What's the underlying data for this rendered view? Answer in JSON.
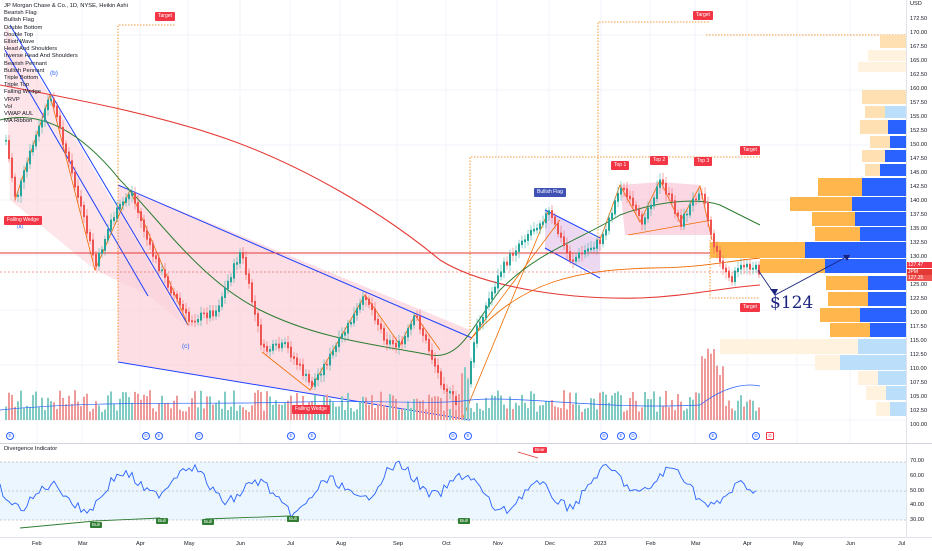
{
  "chart": {
    "symbol_line": "JP Morgan Chase & Co., 1D, NYSE, Heikin Ashi",
    "indicators": [
      "Bearish Flag",
      "Bullish Flag",
      "Double Bottom",
      "Double Top",
      "Elliott Wave",
      "Head And Shoulders",
      "Inverse Head And Shoulders",
      "Bearish Pennant",
      "Bullish Pennant",
      "Triple Bottom",
      "Triple Top",
      "Falling Wedge",
      "VRVP",
      "Vol",
      "VWAP AUL",
      "MA Ribbon"
    ],
    "currency": "USD",
    "price_labels": [
      "172.50",
      "170.00",
      "167.50",
      "165.00",
      "162.50",
      "160.00",
      "157.50",
      "155.00",
      "152.50",
      "150.00",
      "147.50",
      "145.00",
      "142.50",
      "140.00",
      "137.50",
      "135.00",
      "132.50",
      "130.00",
      "127.50",
      "125.00",
      "122.50",
      "120.00",
      "117.50",
      "115.00",
      "112.50",
      "110.00",
      "107.50",
      "105.00",
      "102.50",
      "100.00"
    ],
    "current_price_tags": [
      "127.47",
      "127.35"
    ],
    "jpm_tag": "JPM",
    "time_labels": [
      "Feb",
      "Mar",
      "Apr",
      "May",
      "Jun",
      "Jul",
      "Aug",
      "Sep",
      "Oct",
      "Nov",
      "Dec",
      "2023",
      "Feb",
      "Mar",
      "Apr",
      "May",
      "Jun",
      "Jul"
    ],
    "annotations": {
      "target_labels": [
        "Target",
        "Target",
        "Target",
        "Target"
      ],
      "tops": [
        "Top 1",
        "Top 2",
        "Top 3"
      ],
      "bullish_flag": "Bullish Flag",
      "falling_wedge": [
        "Falling Wedge",
        "Falling Wedge"
      ],
      "wave_b": "(b)",
      "wave_c": "(c)",
      "wave_a_partial": "(a)",
      "projected_price": "$124"
    },
    "colors": {
      "up": "#26a69a",
      "down": "#ef5350",
      "wedge_fill": "#f8bbd0",
      "profile_up": "#2962ff",
      "profile_down": "#ffb74d",
      "accent": "#f23645"
    }
  },
  "oscillator": {
    "title": "Divergence Indicator",
    "levels": [
      "70.00",
      "60.00",
      "50.00",
      "40.00",
      "30.00"
    ],
    "bull_labels": [
      "Bull",
      "Bull",
      "Bull",
      "Bull",
      "Bull"
    ],
    "bear_label": "Bear"
  },
  "events": [
    "E",
    "D",
    "E",
    "D",
    "E",
    "E",
    "D",
    "E",
    "D",
    "E",
    "D",
    "E",
    "D",
    "D"
  ]
}
